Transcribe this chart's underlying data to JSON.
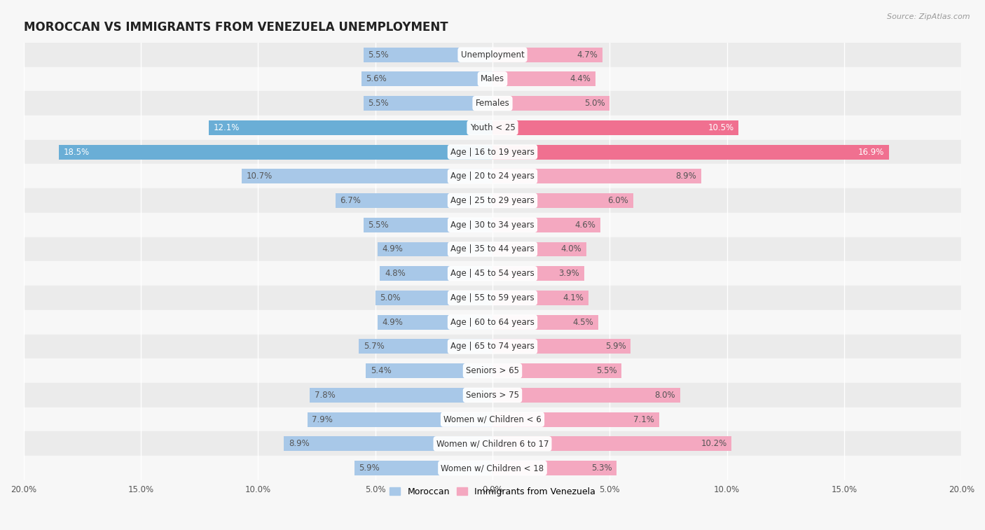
{
  "title": "MOROCCAN VS IMMIGRANTS FROM VENEZUELA UNEMPLOYMENT",
  "source": "Source: ZipAtlas.com",
  "categories": [
    "Unemployment",
    "Males",
    "Females",
    "Youth < 25",
    "Age | 16 to 19 years",
    "Age | 20 to 24 years",
    "Age | 25 to 29 years",
    "Age | 30 to 34 years",
    "Age | 35 to 44 years",
    "Age | 45 to 54 years",
    "Age | 55 to 59 years",
    "Age | 60 to 64 years",
    "Age | 65 to 74 years",
    "Seniors > 65",
    "Seniors > 75",
    "Women w/ Children < 6",
    "Women w/ Children 6 to 17",
    "Women w/ Children < 18"
  ],
  "moroccan": [
    5.5,
    5.6,
    5.5,
    12.1,
    18.5,
    10.7,
    6.7,
    5.5,
    4.9,
    4.8,
    5.0,
    4.9,
    5.7,
    5.4,
    7.8,
    7.9,
    8.9,
    5.9
  ],
  "venezuela": [
    4.7,
    4.4,
    5.0,
    10.5,
    16.9,
    8.9,
    6.0,
    4.6,
    4.0,
    3.9,
    4.1,
    4.5,
    5.9,
    5.5,
    8.0,
    7.1,
    10.2,
    5.3
  ],
  "moroccan_color_normal": "#a8c8e8",
  "moroccan_color_highlight": "#6aaed6",
  "venezuela_color_normal": "#f4a8c0",
  "venezuela_color_highlight": "#f07090",
  "highlight_rows": [
    3,
    4
  ],
  "bar_height": 0.6,
  "xlim": 20.0,
  "bg_color": "#f7f7f7",
  "row_color_even": "#ebebeb",
  "row_color_odd": "#f7f7f7",
  "label_fontsize": 8.5,
  "value_fontsize": 8.5,
  "title_fontsize": 12,
  "legend_label_moroccan": "Moroccan",
  "legend_label_venezuela": "Immigrants from Venezuela",
  "x_axis_labels": [
    "20.0%",
    "15.0%",
    "10.0%",
    "5.0%",
    "0.0%",
    "5.0%",
    "10.0%",
    "15.0%",
    "20.0%"
  ],
  "x_axis_ticks": [
    -20,
    -15,
    -10,
    -5,
    0,
    5,
    10,
    15,
    20
  ]
}
